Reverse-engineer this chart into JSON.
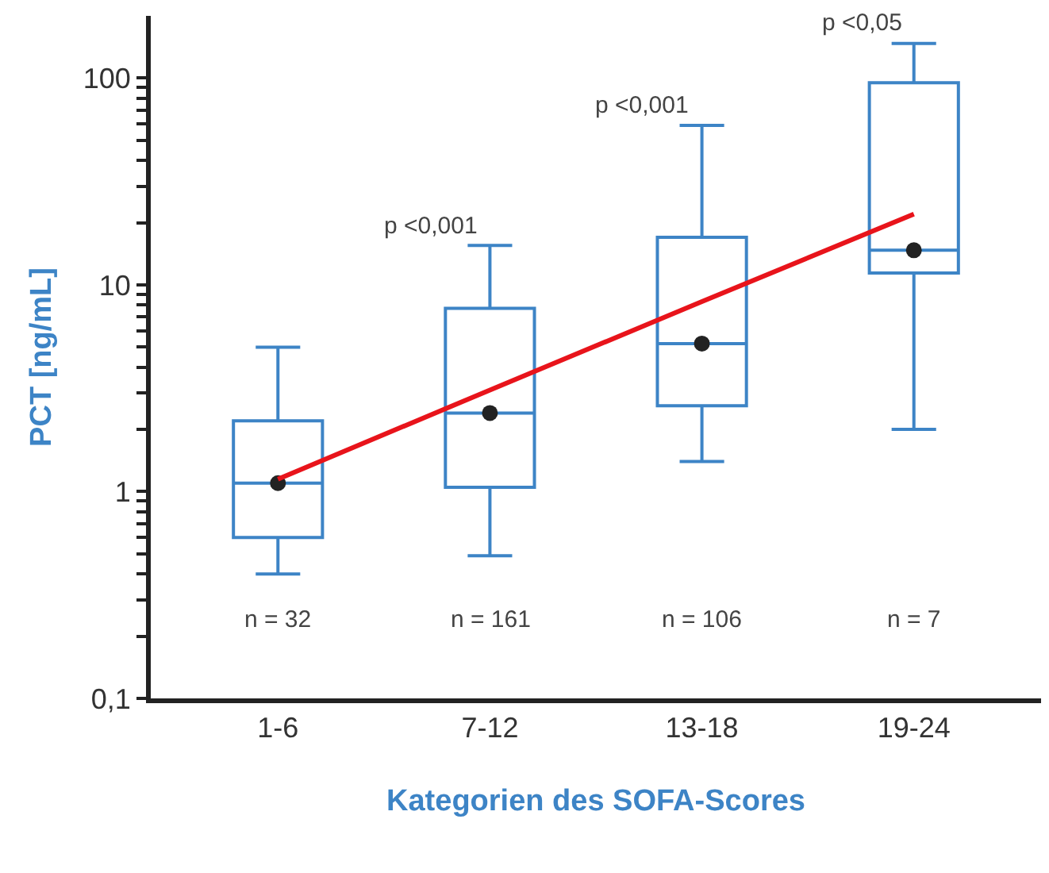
{
  "chart_data": {
    "type": "box",
    "xlabel": "Kategorien des SOFA-Scores",
    "ylabel": "PCT [ng/mL]",
    "categories": [
      "1-6",
      "7-12",
      "13-18",
      "19-24"
    ],
    "boxes": [
      {
        "low": 0.4,
        "q1": 0.6,
        "median": 1.1,
        "q3": 2.2,
        "high": 5,
        "mean": 1.1
      },
      {
        "low": 0.49,
        "q1": 1.05,
        "median": 2.4,
        "q3": 7.7,
        "high": 15.5,
        "mean": 2.4
      },
      {
        "low": 1.4,
        "q1": 2.6,
        "median": 5.2,
        "q3": 17,
        "high": 59,
        "mean": 5.2
      },
      {
        "low": 2.0,
        "q1": 11.4,
        "median": 14.7,
        "q3": 95,
        "high": 147,
        "mean": 14.7
      }
    ],
    "color": "#3d84c6",
    "series": [
      {
        "type": "line",
        "color": "#e8141b",
        "values": [
          1.15,
          3.1,
          8.3,
          22
        ]
      }
    ],
    "log": true,
    "ylim": [
      0.1,
      200
    ],
    "yticks": [
      {
        "value": 0.1,
        "label": "0,1"
      },
      {
        "value": 0.2,
        "label": null
      },
      {
        "value": 0.3,
        "label": null
      },
      {
        "value": 0.4,
        "label": null
      },
      {
        "value": 0.5,
        "label": null
      },
      {
        "value": 0.6,
        "label": null
      },
      {
        "value": 0.7,
        "label": null
      },
      {
        "value": 0.8,
        "label": null
      },
      {
        "value": 0.9,
        "label": null
      },
      1,
      {
        "value": 2,
        "label": null
      },
      {
        "value": 3,
        "label": null
      },
      {
        "value": 4,
        "label": null
      },
      {
        "value": 5,
        "label": null
      },
      {
        "value": 6,
        "label": null
      },
      {
        "value": 7,
        "label": null
      },
      {
        "value": 8,
        "label": null
      },
      {
        "value": 9,
        "label": null
      },
      10,
      {
        "value": 20,
        "label": null
      },
      {
        "value": 30,
        "label": null
      },
      {
        "value": 40,
        "label": null
      },
      {
        "value": 50,
        "label": null
      },
      {
        "value": 60,
        "label": null
      },
      {
        "value": 70,
        "label": null
      },
      {
        "value": 80,
        "label": null
      },
      {
        "value": 90,
        "label": null
      },
      100
    ],
    "annotations": [
      "p <0,001",
      "p <0,001",
      "p <0,05",
      "n = 32",
      "n = 161",
      "n = 106",
      "n = 7"
    ]
  }
}
